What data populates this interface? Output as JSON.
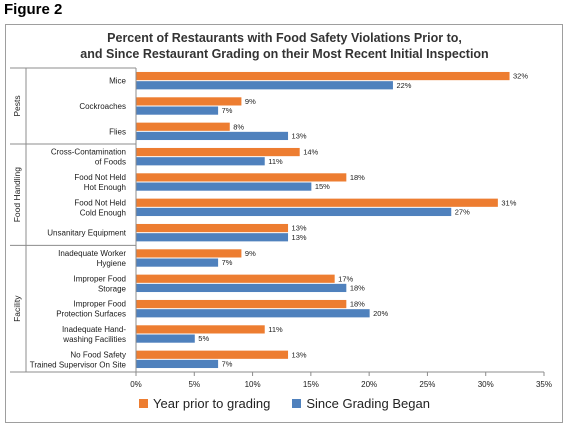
{
  "figure_label": "Figure 2",
  "chart_data": {
    "type": "bar",
    "orientation": "horizontal",
    "title_line1": "Percent of Restaurants with Food Safety Violations Prior to,",
    "title_line2": "and Since Restaurant Grading on their Most Recent Initial Inspection",
    "groups": [
      {
        "name": "Pests",
        "categories": [
          "Mice",
          "Cockroaches",
          "Flies"
        ]
      },
      {
        "name": "Food Handling",
        "categories": [
          "Cross-Contamination of Foods",
          "Food Not Held Hot Enough",
          "Food Not Held Cold Enough",
          "Unsanitary Equipment"
        ]
      },
      {
        "name": "Facility",
        "categories": [
          "Inadequate Worker Hygiene",
          "Improper Food Storage",
          "Improper Food Protection Surfaces",
          "Inadequate Hand-washing Facilities",
          "No Food Safety Trained Supervisor On Site"
        ]
      }
    ],
    "category_lines": [
      [
        "Mice"
      ],
      [
        "Cockroaches"
      ],
      [
        "Flies"
      ],
      [
        "Cross-Contamination",
        "of Foods"
      ],
      [
        "Food Not Held",
        "Hot Enough"
      ],
      [
        "Food Not Held",
        "Cold Enough"
      ],
      [
        "Unsanitary Equipment"
      ],
      [
        "Inadequate Worker",
        "Hygiene"
      ],
      [
        "Improper Food",
        "Storage"
      ],
      [
        "Improper Food",
        "Protection Surfaces"
      ],
      [
        "Inadequate Hand-",
        "washing Facilities"
      ],
      [
        "No Food Safety",
        "Trained Supervisor On Site"
      ]
    ],
    "series": [
      {
        "name": "Year prior to grading",
        "color": "#ED7D31",
        "values": [
          32,
          9,
          8,
          14,
          18,
          31,
          13,
          9,
          17,
          18,
          11,
          13
        ]
      },
      {
        "name": "Since Grading Began",
        "color": "#4F81BD",
        "values": [
          22,
          7,
          13,
          11,
          15,
          27,
          13,
          7,
          18,
          20,
          5,
          7
        ]
      }
    ],
    "x_ticks": [
      "0%",
      "5%",
      "10%",
      "15%",
      "20%",
      "25%",
      "30%",
      "35%"
    ],
    "xlim": [
      0,
      35
    ],
    "grid": false,
    "legend_position": "bottom"
  }
}
